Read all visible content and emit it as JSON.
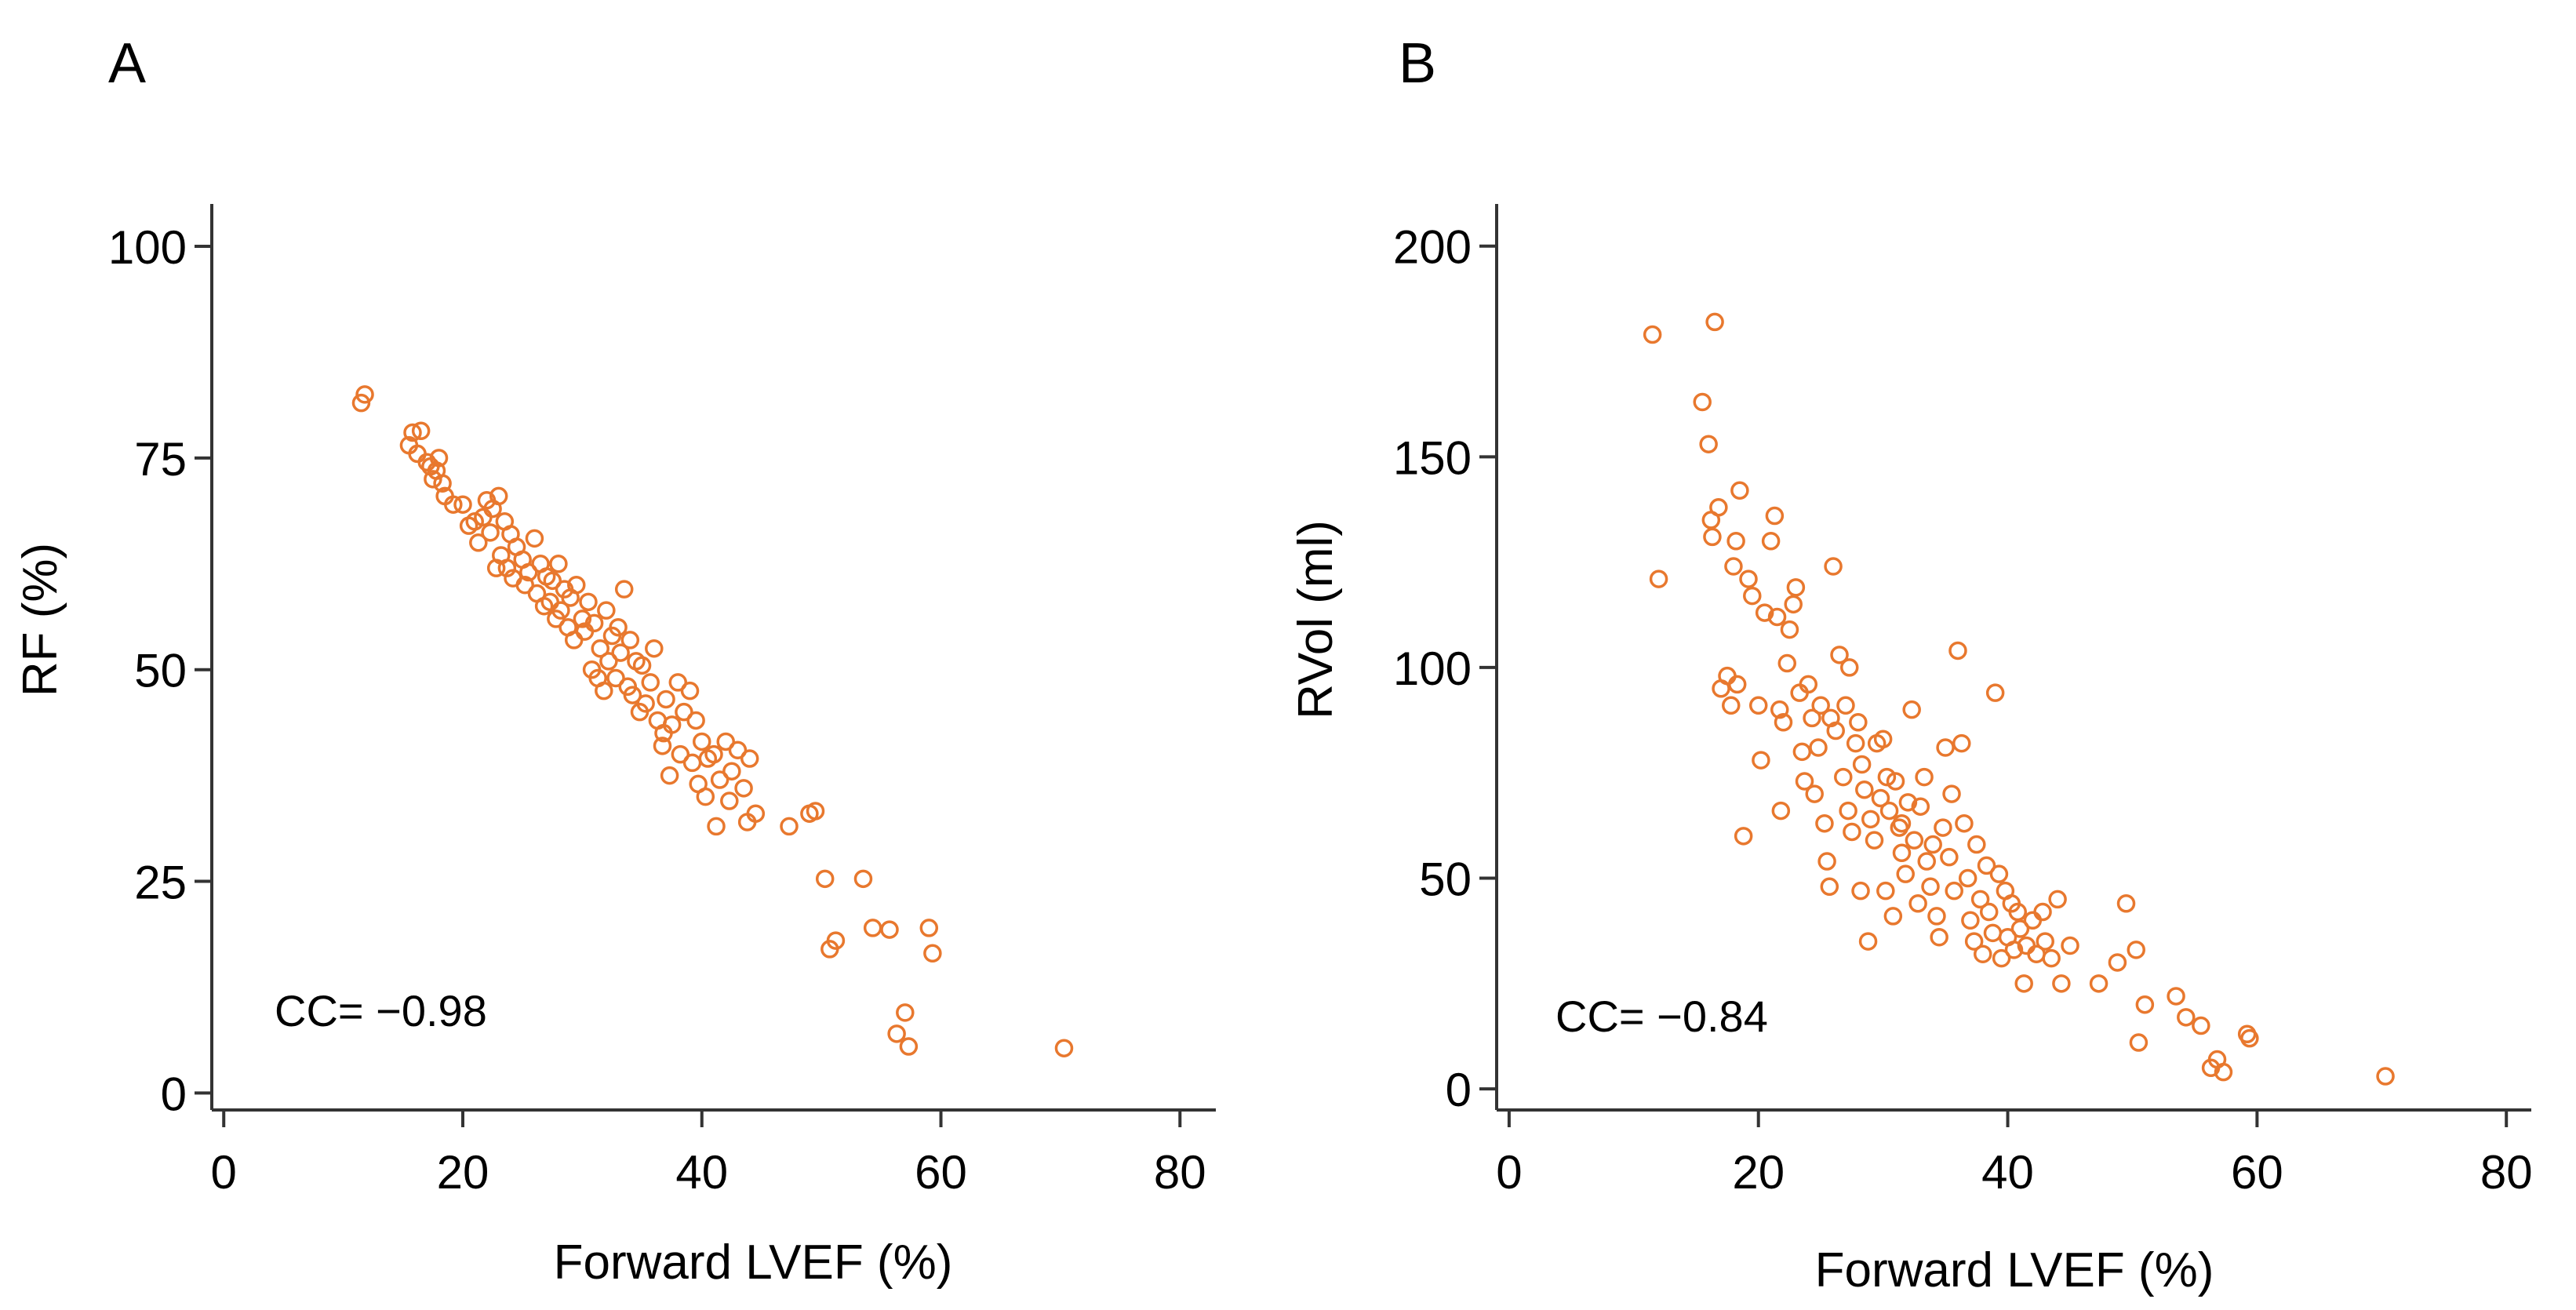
{
  "colors": {
    "marker": "#E8782E",
    "axis": "#333333",
    "text": "#000000"
  },
  "chart_data": [
    {
      "panel_label": "A",
      "type": "scatter",
      "title": "",
      "xlabel": "Forward LVEF (%)",
      "ylabel": "RF (%)",
      "xlim": [
        -1,
        83
      ],
      "ylim": [
        -2,
        105
      ],
      "xticks": [
        0,
        20,
        40,
        60,
        80
      ],
      "yticks": [
        0,
        25,
        50,
        75,
        100
      ],
      "grid": false,
      "annotation": "CC= −0.98",
      "points": [
        [
          11.5,
          81.5
        ],
        [
          11.8,
          82.5
        ],
        [
          15.5,
          76.5
        ],
        [
          15.8,
          78
        ],
        [
          16.2,
          75.5
        ],
        [
          16.5,
          78.2
        ],
        [
          17,
          74.5
        ],
        [
          17.3,
          74
        ],
        [
          17.5,
          72.5
        ],
        [
          17.8,
          73.5
        ],
        [
          18,
          75
        ],
        [
          18.3,
          72
        ],
        [
          18.5,
          70.5
        ],
        [
          19.2,
          69.5
        ],
        [
          20,
          69.5
        ],
        [
          20.5,
          67
        ],
        [
          21,
          67.5
        ],
        [
          21.3,
          65
        ],
        [
          21.7,
          68
        ],
        [
          22,
          70
        ],
        [
          22.5,
          69
        ],
        [
          22.3,
          66.2
        ],
        [
          23,
          70.5
        ],
        [
          23.5,
          67.5
        ],
        [
          23.2,
          63.5
        ],
        [
          24,
          66
        ],
        [
          23.7,
          62
        ],
        [
          24.5,
          64.5
        ],
        [
          25,
          63
        ],
        [
          25.5,
          61.5
        ],
        [
          25.2,
          60
        ],
        [
          26,
          65.5
        ],
        [
          26.5,
          62.5
        ],
        [
          26.2,
          59
        ],
        [
          26.8,
          57.5
        ],
        [
          27,
          61
        ],
        [
          27.5,
          60.5
        ],
        [
          27.3,
          58
        ],
        [
          28,
          62.5
        ],
        [
          28.5,
          59.5
        ],
        [
          28.2,
          57
        ],
        [
          28.8,
          55
        ],
        [
          29,
          58.5
        ],
        [
          29.5,
          60
        ],
        [
          29.3,
          53.5
        ],
        [
          30,
          56
        ],
        [
          30.5,
          58
        ],
        [
          30.2,
          54.5
        ],
        [
          30.8,
          50
        ],
        [
          31,
          55.5
        ],
        [
          31.5,
          52.5
        ],
        [
          31.3,
          49
        ],
        [
          32,
          57
        ],
        [
          32.5,
          54
        ],
        [
          32.2,
          51
        ],
        [
          32.8,
          49
        ],
        [
          33,
          55
        ],
        [
          33.5,
          59.5
        ],
        [
          33.2,
          52
        ],
        [
          33.8,
          48
        ],
        [
          34,
          53.5
        ],
        [
          34.5,
          51
        ],
        [
          34.2,
          47
        ],
        [
          35,
          50.5
        ],
        [
          35.3,
          46
        ],
        [
          35.7,
          48.5
        ],
        [
          36,
          52.5
        ],
        [
          36.3,
          44
        ],
        [
          36.7,
          41
        ],
        [
          37,
          46.5
        ],
        [
          37.5,
          43.5
        ],
        [
          37.3,
          37.5
        ],
        [
          38,
          48.5
        ],
        [
          38.5,
          45
        ],
        [
          38.2,
          40
        ],
        [
          39,
          47.5
        ],
        [
          39.5,
          44
        ],
        [
          39.2,
          39
        ],
        [
          39.7,
          36.5
        ],
        [
          40,
          41.5
        ],
        [
          40.5,
          39.5
        ],
        [
          40.3,
          35
        ],
        [
          41,
          40
        ],
        [
          41.2,
          31.5
        ],
        [
          41.5,
          37
        ],
        [
          42,
          41.5
        ],
        [
          42.5,
          38
        ],
        [
          42.3,
          34.5
        ],
        [
          43,
          40.5
        ],
        [
          43.5,
          36
        ],
        [
          43.8,
          32
        ],
        [
          44,
          39.5
        ],
        [
          44.5,
          33
        ],
        [
          47.3,
          31.5
        ],
        [
          49,
          33
        ],
        [
          49.5,
          33.3
        ],
        [
          50.3,
          25.3
        ],
        [
          50.7,
          17
        ],
        [
          51.2,
          18
        ],
        [
          53.5,
          25.3
        ],
        [
          54.3,
          19.5
        ],
        [
          55.7,
          19.3
        ],
        [
          56.3,
          7
        ],
        [
          57,
          9.5
        ],
        [
          57.3,
          5.5
        ],
        [
          59,
          19.5
        ],
        [
          59.3,
          16.5
        ],
        [
          70.3,
          5.3
        ],
        [
          22.8,
          62
        ],
        [
          24.2,
          60.8
        ],
        [
          27.8,
          56
        ],
        [
          31.8,
          47.5
        ],
        [
          34.8,
          45
        ],
        [
          36.8,
          42.5
        ]
      ]
    },
    {
      "panel_label": "B",
      "type": "scatter",
      "title": "",
      "xlabel": "Forward LVEF (%)",
      "ylabel": "RVol (ml)",
      "xlim": [
        -1,
        82
      ],
      "ylim": [
        -5,
        210
      ],
      "xticks": [
        0,
        20,
        40,
        60,
        80
      ],
      "yticks": [
        0,
        50,
        100,
        150,
        200
      ],
      "grid": false,
      "annotation": "CC= −0.84",
      "points": [
        [
          11.5,
          179
        ],
        [
          12,
          121
        ],
        [
          15.5,
          163
        ],
        [
          16,
          153
        ],
        [
          16.5,
          182
        ],
        [
          16.2,
          135
        ],
        [
          16.3,
          131
        ],
        [
          16.8,
          138
        ],
        [
          17,
          95
        ],
        [
          17.5,
          98
        ],
        [
          17.8,
          91
        ],
        [
          18,
          124
        ],
        [
          18.2,
          130
        ],
        [
          18.5,
          142
        ],
        [
          18.3,
          96
        ],
        [
          18.8,
          60
        ],
        [
          19.2,
          121
        ],
        [
          19.5,
          117
        ],
        [
          20,
          91
        ],
        [
          20.2,
          78
        ],
        [
          20.5,
          113
        ],
        [
          21,
          130
        ],
        [
          21.3,
          136
        ],
        [
          21.5,
          112
        ],
        [
          21.7,
          90
        ],
        [
          21.8,
          66
        ],
        [
          22,
          87
        ],
        [
          22.5,
          109
        ],
        [
          22.8,
          115
        ],
        [
          22.3,
          101
        ],
        [
          23,
          119
        ],
        [
          23.3,
          94
        ],
        [
          23.5,
          80
        ],
        [
          23.7,
          73
        ],
        [
          24,
          96
        ],
        [
          24.3,
          88
        ],
        [
          24.5,
          70
        ],
        [
          24.8,
          81
        ],
        [
          25,
          91
        ],
        [
          25.3,
          63
        ],
        [
          25.5,
          54
        ],
        [
          25.7,
          48
        ],
        [
          26,
          124
        ],
        [
          26.2,
          85
        ],
        [
          26.5,
          103
        ],
        [
          26.8,
          74
        ],
        [
          27,
          91
        ],
        [
          27.2,
          66
        ],
        [
          27.5,
          61
        ],
        [
          27.8,
          82
        ],
        [
          28,
          87
        ],
        [
          28.3,
          77
        ],
        [
          28.5,
          71
        ],
        [
          28.2,
          47
        ],
        [
          28.8,
          35
        ],
        [
          29,
          64
        ],
        [
          29.3,
          59
        ],
        [
          29.5,
          82
        ],
        [
          29.8,
          69
        ],
        [
          30,
          83
        ],
        [
          30.3,
          74
        ],
        [
          30.5,
          66
        ],
        [
          30.2,
          47
        ],
        [
          30.8,
          41
        ],
        [
          31,
          73
        ],
        [
          31.3,
          62
        ],
        [
          31.5,
          56
        ],
        [
          31.8,
          51
        ],
        [
          32,
          68
        ],
        [
          32.3,
          90
        ],
        [
          32.5,
          59
        ],
        [
          32.8,
          44
        ],
        [
          33,
          67
        ],
        [
          33.3,
          74
        ],
        [
          33.5,
          54
        ],
        [
          33.8,
          48
        ],
        [
          34,
          58
        ],
        [
          34.3,
          41
        ],
        [
          34.5,
          36
        ],
        [
          34.8,
          62
        ],
        [
          35,
          81
        ],
        [
          35.3,
          55
        ],
        [
          35.7,
          47
        ],
        [
          36,
          104
        ],
        [
          36.3,
          82
        ],
        [
          36.5,
          63
        ],
        [
          36.8,
          50
        ],
        [
          37,
          40
        ],
        [
          37.3,
          35
        ],
        [
          37.5,
          58
        ],
        [
          37.8,
          45
        ],
        [
          38,
          32
        ],
        [
          38.3,
          53
        ],
        [
          38.5,
          42
        ],
        [
          38.8,
          37
        ],
        [
          39,
          94
        ],
        [
          39.3,
          51
        ],
        [
          39.5,
          31
        ],
        [
          39.8,
          47
        ],
        [
          40,
          36
        ],
        [
          40.3,
          44
        ],
        [
          40.5,
          33
        ],
        [
          40.8,
          42
        ],
        [
          41,
          38
        ],
        [
          41.3,
          25
        ],
        [
          41.5,
          34
        ],
        [
          42,
          40
        ],
        [
          42.3,
          32
        ],
        [
          42.8,
          42
        ],
        [
          43,
          35
        ],
        [
          43.5,
          31
        ],
        [
          44,
          45
        ],
        [
          44.3,
          25
        ],
        [
          45,
          34
        ],
        [
          47.3,
          25
        ],
        [
          48.8,
          30
        ],
        [
          49.5,
          44
        ],
        [
          50.3,
          33
        ],
        [
          50.5,
          11
        ],
        [
          51,
          20
        ],
        [
          53.5,
          22
        ],
        [
          54.3,
          17
        ],
        [
          55.5,
          15
        ],
        [
          56.3,
          5
        ],
        [
          56.8,
          7
        ],
        [
          57.3,
          4
        ],
        [
          59.2,
          13
        ],
        [
          59.4,
          12
        ],
        [
          70.3,
          3
        ],
        [
          27.3,
          100
        ],
        [
          25.8,
          88
        ],
        [
          31.5,
          63
        ],
        [
          35.5,
          70
        ]
      ]
    }
  ]
}
